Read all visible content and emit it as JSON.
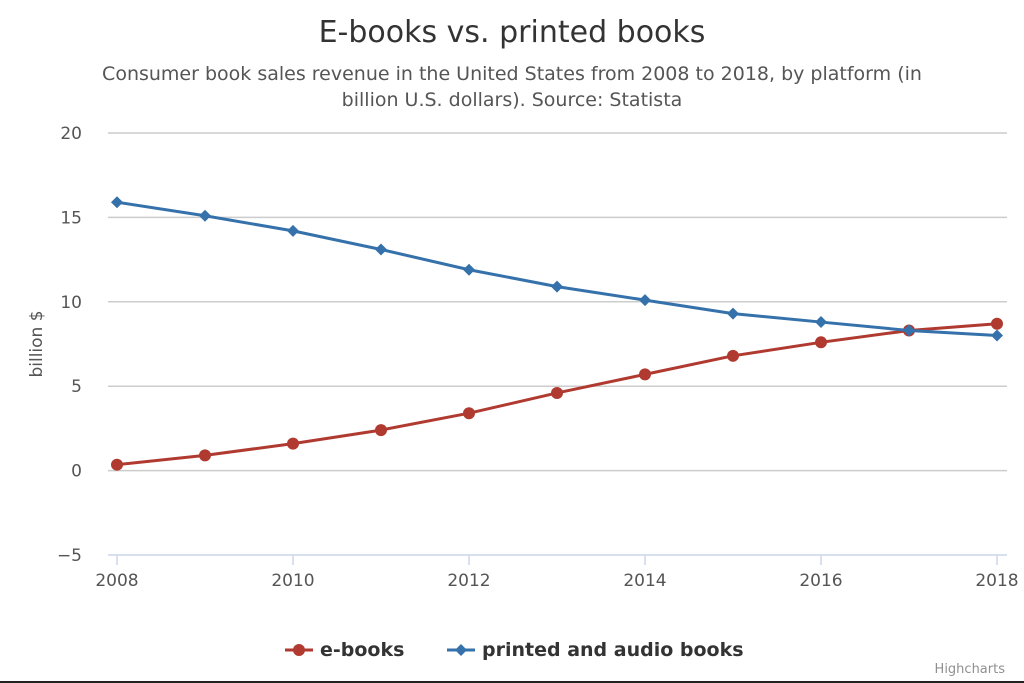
{
  "chart_data": {
    "type": "line",
    "title": "E-books vs. printed books",
    "subtitle_lines": [
      "Consumer book sales revenue in the United States from 2008 to 2018, by platform (in",
      "billion U.S. dollars). Source: Statista"
    ],
    "xlabel": "",
    "ylabel": "billion $",
    "x": [
      2008,
      2009,
      2010,
      2011,
      2012,
      2013,
      2014,
      2015,
      2016,
      2017,
      2018
    ],
    "x_tick_labels": [
      "2008",
      "2010",
      "2012",
      "2014",
      "2016",
      "2018"
    ],
    "x_ticks": [
      2008,
      2010,
      2012,
      2014,
      2016,
      2018
    ],
    "xlim": [
      2008,
      2018
    ],
    "ylim": [
      -5,
      20
    ],
    "y_ticks": [
      -5,
      0,
      5,
      10,
      15,
      20
    ],
    "y_tick_labels": [
      "−5",
      "0",
      "5",
      "10",
      "15",
      "20"
    ],
    "grid": true,
    "legend_position": "bottom-center",
    "series": [
      {
        "name": "e-books",
        "color": "#b03a30",
        "marker": "circle",
        "values": [
          0.35,
          0.9,
          1.6,
          2.4,
          3.4,
          4.6,
          5.7,
          6.8,
          7.6,
          8.3,
          8.7
        ]
      },
      {
        "name": "printed and audio books",
        "color": "#3571aa",
        "marker": "diamond",
        "values": [
          15.9,
          15.1,
          14.2,
          13.1,
          11.9,
          10.9,
          10.1,
          9.3,
          8.8,
          8.3,
          8.0
        ]
      }
    ],
    "credits": "Highcharts"
  }
}
